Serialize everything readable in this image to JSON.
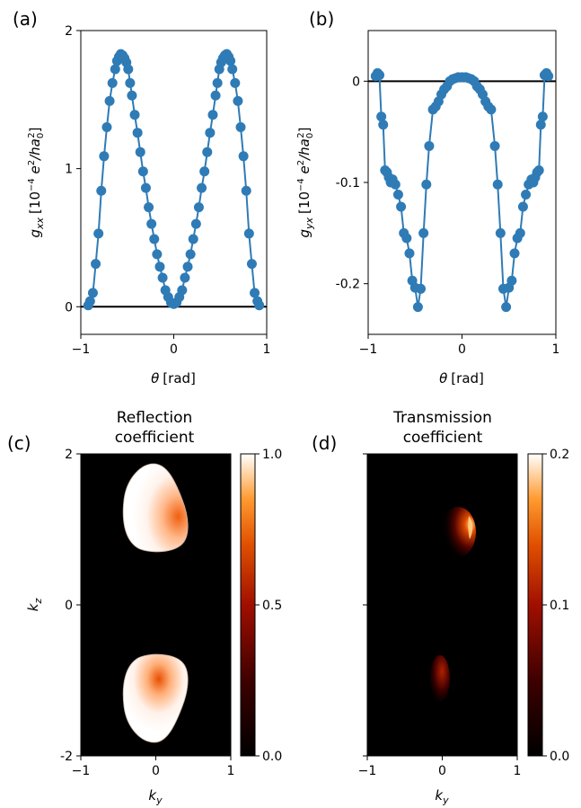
{
  "panel_labels": [
    "(a)",
    "(b)",
    "(c)",
    "(d)"
  ],
  "colors": {
    "series": "#2f7bb6",
    "zero_line": "#000000",
    "map_background": "#000000"
  },
  "chart_data": [
    {
      "id": "a",
      "type": "line",
      "markers": true,
      "xlabel_symbol": "θ",
      "xlabel_unit": "[rad]",
      "ylabel_symbol": "g",
      "ylabel_sub": "xx",
      "ylabel_unit_open": "[10",
      "ylabel_exp": "−4",
      "ylabel_unit_mid": " e",
      "ylabel_sq": "2",
      "ylabel_unit_den": "/ha",
      "ylabel_den_sub": "0",
      "ylabel_den_sup": "2",
      "ylabel_close": "]",
      "xlim": [
        -1.0,
        1.0
      ],
      "ylim": [
        -0.2,
        2.0
      ],
      "xticks": [
        -1,
        0,
        1
      ],
      "xtick_labels": [
        "−1",
        "0",
        "1"
      ],
      "yticks": [
        0,
        1,
        2
      ],
      "ytick_labels": [
        "0",
        "1",
        "2"
      ],
      "zero_line": 0,
      "x": [
        -0.92,
        -0.9,
        -0.87,
        -0.84,
        -0.81,
        -0.78,
        -0.75,
        -0.72,
        -0.69,
        -0.66,
        -0.63,
        -0.61,
        -0.59,
        -0.57,
        -0.55,
        -0.53,
        -0.51,
        -0.49,
        -0.47,
        -0.45,
        -0.42,
        -0.39,
        -0.36,
        -0.33,
        -0.3,
        -0.27,
        -0.24,
        -0.21,
        -0.18,
        -0.15,
        -0.12,
        -0.09,
        -0.06,
        -0.03,
        0.0,
        0.03,
        0.06,
        0.09,
        0.12,
        0.15,
        0.18,
        0.21,
        0.24,
        0.27,
        0.3,
        0.33,
        0.36,
        0.39,
        0.42,
        0.45,
        0.47,
        0.49,
        0.51,
        0.53,
        0.55,
        0.57,
        0.59,
        0.61,
        0.63,
        0.66,
        0.69,
        0.72,
        0.75,
        0.78,
        0.81,
        0.84,
        0.87,
        0.9,
        0.92
      ],
      "y": [
        0.01,
        0.04,
        0.1,
        0.31,
        0.53,
        0.84,
        1.09,
        1.3,
        1.49,
        1.62,
        1.72,
        1.78,
        1.81,
        1.83,
        1.82,
        1.8,
        1.77,
        1.72,
        1.62,
        1.53,
        1.39,
        1.26,
        1.12,
        0.98,
        0.86,
        0.72,
        0.6,
        0.49,
        0.38,
        0.29,
        0.21,
        0.12,
        0.07,
        0.03,
        0.02,
        0.03,
        0.07,
        0.12,
        0.21,
        0.29,
        0.38,
        0.49,
        0.6,
        0.72,
        0.86,
        0.98,
        1.12,
        1.26,
        1.39,
        1.53,
        1.62,
        1.72,
        1.77,
        1.8,
        1.82,
        1.83,
        1.81,
        1.78,
        1.72,
        1.62,
        1.49,
        1.3,
        1.09,
        0.84,
        0.53,
        0.31,
        0.1,
        0.04,
        0.01
      ]
    },
    {
      "id": "b",
      "type": "line",
      "markers": true,
      "xlabel_symbol": "θ",
      "xlabel_unit": "[rad]",
      "ylabel_symbol": "g",
      "ylabel_sub": "yx",
      "ylabel_unit_open": "[10",
      "ylabel_exp": "−4",
      "ylabel_unit_mid": " e",
      "ylabel_sq": "2",
      "ylabel_unit_den": "/ha",
      "ylabel_den_sub": "0",
      "ylabel_den_sup": "2",
      "ylabel_close": "]",
      "xlim": [
        -1.0,
        1.0
      ],
      "ylim": [
        -0.25,
        0.05
      ],
      "xticks": [
        -1,
        0,
        1
      ],
      "xtick_labels": [
        "−1",
        "0",
        "1"
      ],
      "yticks": [
        0,
        -0.1,
        -0.2
      ],
      "ytick_labels": [
        "0",
        "-0.1",
        "-0.2"
      ],
      "zero_line": 0,
      "x": [
        -0.92,
        -0.9,
        -0.88,
        -0.86,
        -0.84,
        -0.82,
        -0.8,
        -0.78,
        -0.76,
        -0.74,
        -0.71,
        -0.68,
        -0.65,
        -0.62,
        -0.59,
        -0.56,
        -0.53,
        -0.5,
        -0.47,
        -0.44,
        -0.41,
        -0.38,
        -0.35,
        -0.31,
        -0.28,
        -0.25,
        -0.22,
        -0.19,
        -0.16,
        -0.13,
        -0.1,
        -0.07,
        -0.04,
        0.0,
        0.04,
        0.07,
        0.1,
        0.13,
        0.16,
        0.19,
        0.22,
        0.25,
        0.28,
        0.31,
        0.35,
        0.38,
        0.41,
        0.44,
        0.47,
        0.5,
        0.53,
        0.56,
        0.59,
        0.62,
        0.65,
        0.68,
        0.71,
        0.74,
        0.76,
        0.78,
        0.8,
        0.82,
        0.84,
        0.86,
        0.88,
        0.9,
        0.92
      ],
      "y": [
        0.005,
        0.008,
        0.006,
        -0.035,
        -0.043,
        -0.088,
        -0.09,
        -0.095,
        -0.1,
        -0.097,
        -0.102,
        -0.112,
        -0.124,
        -0.15,
        -0.155,
        -0.17,
        -0.197,
        -0.204,
        -0.223,
        -0.205,
        -0.15,
        -0.102,
        -0.064,
        -0.028,
        -0.025,
        -0.02,
        -0.013,
        -0.008,
        -0.005,
        0.0,
        0.002,
        0.003,
        0.004,
        0.004,
        0.004,
        0.003,
        0.002,
        0.0,
        -0.005,
        -0.008,
        -0.013,
        -0.02,
        -0.025,
        -0.028,
        -0.064,
        -0.102,
        -0.15,
        -0.205,
        -0.223,
        -0.204,
        -0.197,
        -0.17,
        -0.155,
        -0.15,
        -0.124,
        -0.112,
        -0.102,
        -0.097,
        -0.1,
        -0.095,
        -0.09,
        -0.088,
        -0.043,
        -0.035,
        0.006,
        0.008,
        0.005
      ]
    },
    {
      "id": "c",
      "type": "heatmap",
      "title_lines": [
        "Reflection",
        "coefficient"
      ],
      "xlabel_symbol": "k",
      "xlabel_sub": "y",
      "ylabel_symbol": "k",
      "ylabel_sub": "z",
      "xlim": [
        -1,
        1
      ],
      "ylim": [
        -2,
        2
      ],
      "xticks": [
        -1,
        0,
        1
      ],
      "xtick_labels": [
        "−1",
        "0",
        "1"
      ],
      "yticks": [
        -2,
        0,
        2
      ],
      "ytick_labels": [
        "-2",
        "0",
        "2"
      ],
      "colorbar_range": [
        0.0,
        1.0
      ],
      "colorbar_ticks": [
        0.0,
        0.5,
        1.0
      ],
      "colorbar_tick_labels": [
        "0.0",
        "0.5",
        "1.0"
      ],
      "colormap": "gist_heat",
      "regions": [
        {
          "ky_center": 0.0,
          "kz_center": 1.1,
          "ky_halfwidth": 0.42,
          "kz_halfheight": 0.75,
          "value": 0.98,
          "hotspot_ky": 0.32,
          "hotspot_kz": 1.02
        },
        {
          "ky_center": 0.0,
          "kz_center": -1.1,
          "ky_halfwidth": 0.42,
          "kz_halfheight": 0.75,
          "value": 0.98,
          "hotspot_ky": 0.0,
          "hotspot_kz": -1.0
        }
      ]
    },
    {
      "id": "d",
      "type": "heatmap",
      "title_lines": [
        "Transmission",
        "coefficient"
      ],
      "xlabel_symbol": "k",
      "xlabel_sub": "y",
      "xlim": [
        -1,
        1
      ],
      "ylim": [
        -2,
        2
      ],
      "xticks": [
        -1,
        0,
        1
      ],
      "xtick_labels": [
        "−1",
        "0",
        "1"
      ],
      "yticks": [
        -2,
        0,
        2
      ],
      "colorbar_range": [
        0.0,
        0.2
      ],
      "colorbar_ticks": [
        0.0,
        0.1,
        0.2
      ],
      "colorbar_tick_labels": [
        "0.0",
        "0.1",
        "0.2"
      ],
      "colormap": "gist_heat",
      "regions": [
        {
          "ky_center": 0.25,
          "kz_center": 1.0,
          "ky_halfwidth": 0.22,
          "kz_halfheight": 0.35,
          "value": 0.12,
          "hotspot_ky": 0.38,
          "hotspot_kz": 1.05
        },
        {
          "ky_center": -0.05,
          "kz_center": -1.15,
          "ky_halfwidth": 0.12,
          "kz_halfheight": 0.3,
          "value": 0.04,
          "hotspot_ky": 0.0,
          "hotspot_kz": -1.05
        }
      ]
    }
  ]
}
